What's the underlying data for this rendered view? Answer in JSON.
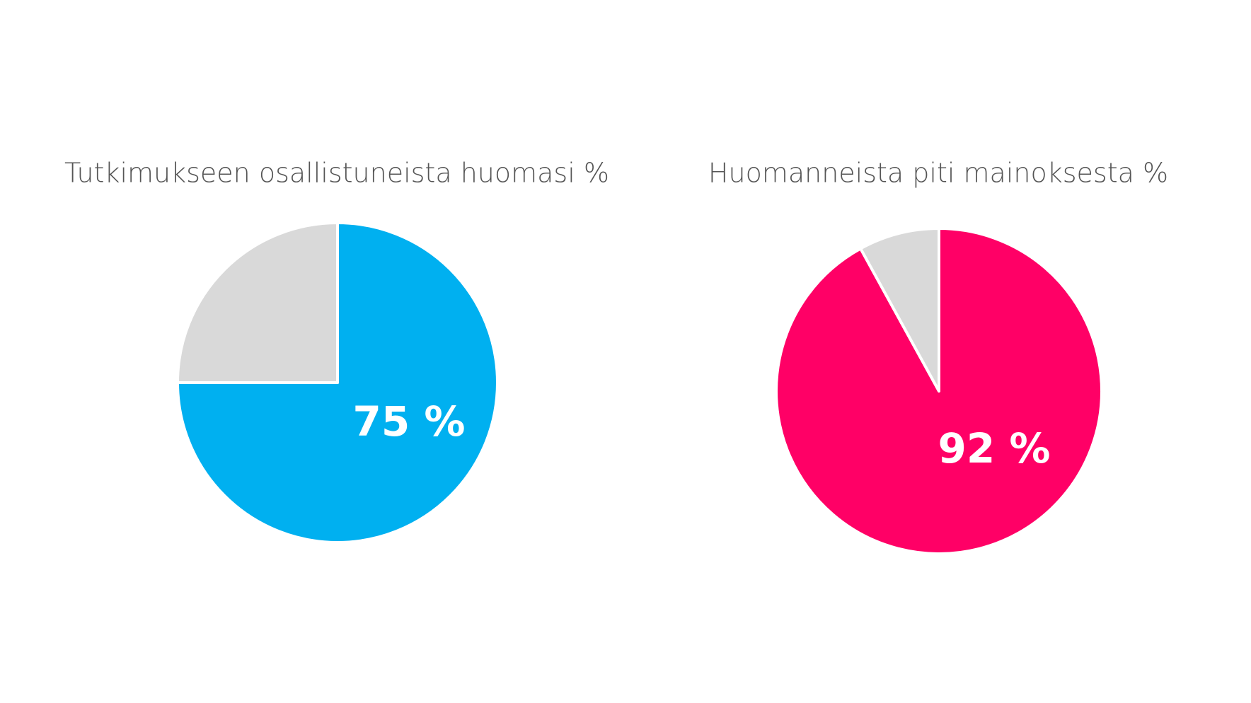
{
  "chart_data": [
    {
      "type": "pie",
      "title": "Tutkimukseen osallistuneista huomasi %",
      "values": [
        75,
        25
      ],
      "value_labels": [
        "75 %",
        null
      ],
      "colors": [
        "#00b0f0",
        "#d9d9d9"
      ]
    },
    {
      "type": "pie",
      "title": "Huomanneista piti mainoksesta %",
      "values": [
        92,
        8
      ],
      "value_labels": [
        "92 %",
        null
      ],
      "colors": [
        "#ff0066",
        "#d9d9d9"
      ]
    }
  ]
}
